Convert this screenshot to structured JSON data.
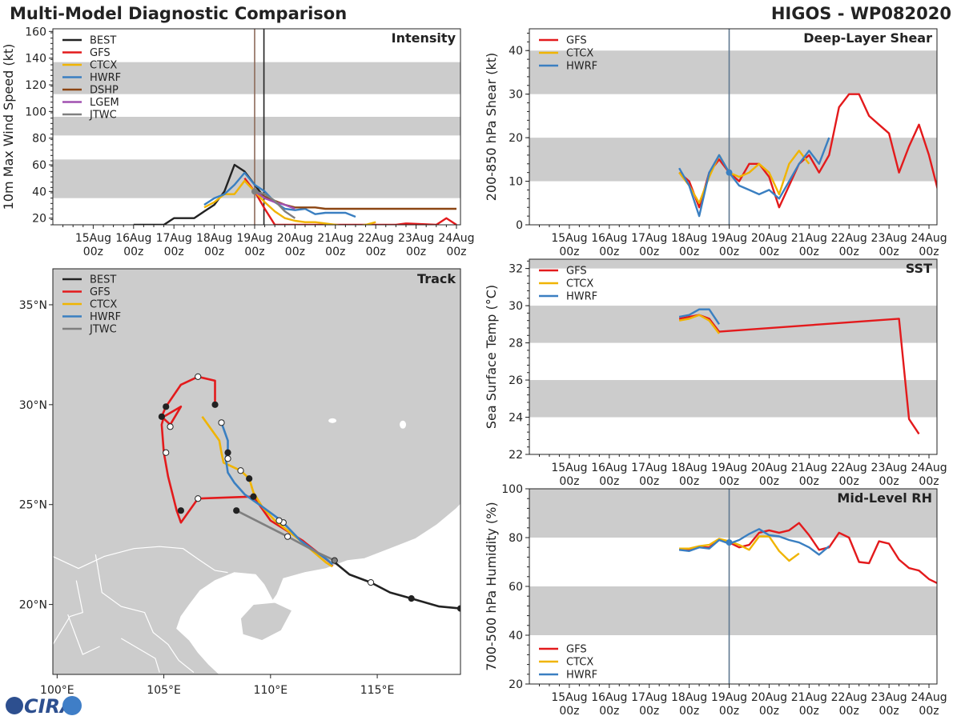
{
  "header": {
    "title": "Multi-Model Diagnostic Comparison",
    "storm": "HIGOS - WP082020"
  },
  "logo": {
    "text": "CIRA"
  },
  "time_ticks": [
    "15Aug\n00z",
    "16Aug\n00z",
    "17Aug\n00z",
    "18Aug\n00z",
    "19Aug\n00z",
    "20Aug\n00z",
    "21Aug\n00z",
    "22Aug\n00z",
    "23Aug\n00z",
    "24Aug\n00z"
  ],
  "colors": {
    "BEST": "#222222",
    "GFS": "#e31a1c",
    "CTCX": "#f0b400",
    "HWRF": "#3a7fc1",
    "DSHP": "#8c4512",
    "LGEM": "#a050b0",
    "JTWC": "#7f7f7f",
    "band": "#cccccc",
    "land": "#cccccc"
  },
  "chart_data": [
    {
      "id": "intensity",
      "type": "line",
      "title": "Intensity",
      "ylabel": "10m Max Wind Speed (kt)",
      "xlim": [
        -1,
        9.1
      ],
      "ylim": [
        15,
        162
      ],
      "yticks": [
        20,
        40,
        60,
        80,
        100,
        120,
        140,
        160
      ],
      "bands": [
        [
          35,
          64
        ],
        [
          82,
          96
        ],
        [
          113,
          137
        ]
      ],
      "vlines": [
        {
          "x": 4.0,
          "color": "#8c6a5a"
        },
        {
          "x": 4.23,
          "color": "#222222"
        }
      ],
      "legend_loc": "top-left",
      "series": [
        {
          "name": "BEST",
          "x": [
            1,
            1.25,
            1.5,
            1.75,
            2,
            2.25,
            2.5,
            2.75,
            3,
            3.25,
            3.5,
            3.75,
            4,
            4.25
          ],
          "y": [
            15,
            15,
            15,
            15,
            20,
            20,
            20,
            25,
            30,
            40,
            60,
            55,
            45,
            35
          ]
        },
        {
          "name": "GFS",
          "x": [
            3.75,
            4,
            4.25,
            4.5,
            7.5,
            7.75,
            8.5,
            8.75,
            9
          ],
          "y": [
            50,
            40,
            27,
            15,
            15,
            16,
            15,
            20,
            15
          ]
        },
        {
          "name": "CTCX",
          "x": [
            2.75,
            3,
            3.25,
            3.5,
            3.75,
            4,
            4.25,
            4.5,
            4.75,
            5,
            5.25,
            5.5,
            5.75,
            6.0,
            6.25,
            6.5,
            6.75,
            7.0
          ],
          "y": [
            28,
            32,
            38,
            38,
            48,
            40,
            32,
            25,
            20,
            18,
            17,
            17,
            16,
            15,
            14,
            14,
            15,
            17
          ]
        },
        {
          "name": "HWRF",
          "x": [
            2.75,
            3,
            3.25,
            3.5,
            3.75,
            4,
            4.25,
            4.5,
            4.75,
            5,
            5.25,
            5.5,
            5.75,
            6.0,
            6.25,
            6.5
          ],
          "y": [
            30,
            35,
            38,
            45,
            54,
            45,
            40,
            32,
            27,
            26,
            27,
            23,
            24,
            24,
            24,
            21
          ]
        },
        {
          "name": "DSHP",
          "x": [
            4,
            4.25,
            4.5,
            4.75,
            5,
            5.25,
            5.5,
            5.75,
            6,
            6.5,
            7,
            7.5,
            8,
            8.5,
            9
          ],
          "y": [
            40,
            36,
            33,
            30,
            28,
            28,
            28,
            27,
            27,
            27,
            27,
            27,
            27,
            27,
            27
          ]
        },
        {
          "name": "LGEM",
          "x": [
            4,
            4.25,
            4.5,
            4.75,
            5
          ],
          "y": [
            40,
            35,
            32,
            30,
            27
          ]
        },
        {
          "name": "JTWC",
          "x": [
            4,
            4.25,
            4.5,
            4.75,
            5
          ],
          "y": [
            40,
            38,
            33,
            25,
            20
          ]
        }
      ]
    },
    {
      "id": "shear",
      "type": "line",
      "title": "Deep-Layer Shear",
      "ylabel": "200-850 hPa Shear (kt)",
      "xlim": [
        -1,
        9.2
      ],
      "ylim": [
        0,
        45
      ],
      "yticks": [
        0,
        10,
        20,
        30,
        40
      ],
      "bands": [
        [
          10,
          20
        ],
        [
          30,
          40
        ]
      ],
      "vlines": [
        {
          "x": 4.0,
          "color": "#607890"
        }
      ],
      "legend_loc": "top-left",
      "series": [
        {
          "name": "GFS",
          "x": [
            2.75,
            3,
            3.25,
            3.5,
            3.75,
            4,
            4.25,
            4.5,
            4.75,
            5,
            5.25,
            5.5,
            5.75,
            6,
            6.25,
            6.5,
            6.75,
            7,
            7.25,
            7.5,
            7.75,
            8,
            8.25,
            8.5,
            8.75,
            9,
            9.25
          ],
          "y": [
            12,
            10,
            4,
            12,
            15,
            12,
            10,
            14,
            14,
            11,
            4,
            9,
            14,
            16,
            12,
            16,
            27,
            30,
            30,
            25,
            23,
            21,
            12,
            18,
            23,
            16,
            7
          ]
        },
        {
          "name": "CTCX",
          "x": [
            2.75,
            3,
            3.25,
            3.5,
            3.75,
            4,
            4.25,
            4.5,
            4.75,
            5,
            5.25,
            5.5,
            5.75,
            6.0
          ],
          "y": [
            12,
            9,
            5,
            11,
            16,
            12,
            11,
            12,
            14,
            12,
            7,
            14,
            17,
            14
          ]
        },
        {
          "name": "HWRF",
          "x": [
            2.75,
            3,
            3.25,
            3.5,
            3.75,
            4,
            4.25,
            4.5,
            4.75,
            5,
            5.25,
            5.5,
            5.75,
            6,
            6.25,
            6.5
          ],
          "y": [
            13,
            9,
            2,
            12,
            16,
            12,
            9,
            8,
            7,
            8,
            6,
            10,
            14,
            17,
            14,
            20
          ]
        }
      ]
    },
    {
      "id": "sst",
      "type": "line",
      "title": "SST",
      "ylabel": "Sea Surface Temp (°C)",
      "xlim": [
        -1,
        9.2
      ],
      "ylim": [
        22,
        32.5
      ],
      "yticks": [
        22,
        24,
        26,
        28,
        30,
        32
      ],
      "bands": [
        [
          24,
          26
        ],
        [
          28,
          30
        ],
        [
          32,
          33
        ]
      ],
      "vlines": [],
      "legend_loc": "top-left",
      "series": [
        {
          "name": "GFS",
          "x": [
            2.75,
            3,
            3.25,
            3.5,
            3.75,
            8.25,
            8.5,
            8.75
          ],
          "y": [
            29.3,
            29.4,
            29.5,
            29.3,
            28.6,
            29.3,
            23.9,
            23.1
          ]
        },
        {
          "name": "CTCX",
          "x": [
            2.75,
            3,
            3.25,
            3.5,
            3.75
          ],
          "y": [
            29.2,
            29.3,
            29.5,
            29.2,
            28.5
          ]
        },
        {
          "name": "HWRF",
          "x": [
            2.75,
            3,
            3.25,
            3.5,
            3.75
          ],
          "y": [
            29.4,
            29.5,
            29.8,
            29.8,
            29.0
          ]
        }
      ]
    },
    {
      "id": "rh",
      "type": "line",
      "title": "Mid-Level RH",
      "ylabel": "700-500 hPa Humidity (%)",
      "xlim": [
        -1,
        9.2
      ],
      "ylim": [
        20,
        100
      ],
      "yticks": [
        20,
        40,
        60,
        80,
        100
      ],
      "bands": [
        [
          40,
          60
        ],
        [
          80,
          100
        ]
      ],
      "vlines": [
        {
          "x": 4.0,
          "color": "#607890"
        }
      ],
      "legend_loc": "bottom-left",
      "series": [
        {
          "name": "GFS",
          "x": [
            2.75,
            3,
            3.25,
            3.5,
            3.75,
            4,
            4.25,
            4.5,
            4.75,
            5,
            5.25,
            5.5,
            5.75,
            6,
            6.25,
            6.5,
            6.75,
            7,
            7.25,
            7.5,
            7.75,
            8,
            8.25,
            8.5,
            8.75,
            9,
            9.25
          ],
          "y": [
            75,
            75,
            76,
            76,
            79,
            78,
            76,
            77,
            82,
            83,
            82,
            83,
            86,
            81,
            75,
            76,
            82,
            80,
            70,
            69.5,
            78.5,
            77.5,
            71,
            67.5,
            66.5,
            63,
            61
          ]
        },
        {
          "name": "CTCX",
          "x": [
            2.75,
            3,
            3.25,
            3.5,
            3.75,
            4,
            4.25,
            4.5,
            4.75,
            5,
            5.25,
            5.5,
            5.75
          ],
          "y": [
            75.5,
            75.5,
            76.5,
            77,
            79.5,
            78.5,
            77,
            75,
            80.5,
            80.5,
            74.5,
            70.5,
            73.5
          ]
        },
        {
          "name": "HWRF",
          "x": [
            2.75,
            3,
            3.25,
            3.5,
            3.75,
            4,
            4.25,
            4.5,
            4.75,
            5,
            5.25,
            5.5,
            5.75,
            6,
            6.25,
            6.5
          ],
          "y": [
            75,
            74.5,
            76,
            75.5,
            79,
            77.5,
            79,
            81.5,
            83.5,
            81,
            80.5,
            79,
            78,
            76,
            73,
            76.5
          ]
        }
      ]
    },
    {
      "id": "track",
      "type": "line",
      "title": "Track",
      "xlim": [
        99.8,
        118.9
      ],
      "ylim": [
        16.5,
        36.8
      ],
      "xticks": [
        100,
        105,
        110,
        115
      ],
      "xtick_labels": [
        "100°E",
        "105°E",
        "110°E",
        "115°E"
      ],
      "yticks": [
        20,
        25,
        30,
        35
      ],
      "ytick_labels": [
        "20°N",
        "25°N",
        "30°N",
        "35°N"
      ],
      "legend_loc": "top-left",
      "series": [
        {
          "name": "BEST",
          "lon": [
            118.9,
            117.9,
            116.6,
            115.6,
            114.7,
            113.7,
            112.9
          ],
          "lat": [
            19.8,
            19.9,
            20.3,
            20.6,
            21.1,
            21.5,
            22.2
          ]
        },
        {
          "name": "GFS",
          "lon": [
            112.9,
            112.8,
            111.5,
            110.0,
            109.2,
            106.6,
            105.8,
            105.6,
            105.2,
            105.0,
            104.9,
            105.0,
            105.8,
            105.3,
            104.9,
            105.1,
            105.8,
            106.6,
            107.4,
            107.4,
            107.4
          ],
          "lat": [
            21.9,
            22.1,
            23.2,
            24.2,
            25.4,
            25.3,
            24.1,
            24.7,
            26.4,
            27.6,
            29.0,
            29.4,
            29.9,
            29.0,
            29.4,
            29.9,
            31.0,
            31.4,
            31.2,
            30.9,
            30.0
          ]
        },
        {
          "name": "CTCX",
          "lon": [
            112.9,
            112.6,
            111.4,
            110.2,
            109.6,
            109.2,
            109.0,
            108.6,
            107.8,
            107.7,
            107.6,
            106.8
          ],
          "lat": [
            21.9,
            22.1,
            23.2,
            24.2,
            24.9,
            25.6,
            26.3,
            26.7,
            27.1,
            27.6,
            28.2,
            29.4
          ]
        },
        {
          "name": "HWRF",
          "lon": [
            112.9,
            112.7,
            111.4,
            110.5,
            109.6,
            108.8,
            108.3,
            108.0,
            107.9,
            108.0,
            108.0,
            107.7
          ],
          "lat": [
            22.0,
            22.2,
            23.2,
            24.2,
            24.9,
            25.5,
            26.1,
            26.6,
            27.3,
            27.8,
            28.2,
            29.1
          ]
        },
        {
          "name": "JTWC",
          "lon": [
            113.0,
            112.2,
            110.8,
            108.4
          ],
          "lat": [
            22.2,
            22.6,
            23.4,
            24.7
          ]
        }
      ],
      "points": [
        {
          "lon": 118.9,
          "lat": 19.8,
          "fill": "#222222"
        },
        {
          "lon": 116.6,
          "lat": 20.3,
          "fill": "#222222"
        },
        {
          "lon": 114.7,
          "lat": 21.1,
          "fill": "#ffffff"
        },
        {
          "lon": 113.0,
          "lat": 22.2,
          "fill": "#7f7f7f"
        },
        {
          "lon": 110.8,
          "lat": 23.4,
          "fill": "#ffffff"
        },
        {
          "lon": 108.4,
          "lat": 24.7,
          "fill": "#222222"
        },
        {
          "lon": 110.6,
          "lat": 24.1,
          "fill": "#ffffff"
        },
        {
          "lon": 110.4,
          "lat": 24.2,
          "fill": "#ffffff"
        },
        {
          "lon": 109.2,
          "lat": 25.4,
          "fill": "#222222"
        },
        {
          "lon": 109.0,
          "lat": 26.3,
          "fill": "#222222"
        },
        {
          "lon": 108.6,
          "lat": 26.7,
          "fill": "#ffffff"
        },
        {
          "lon": 108.0,
          "lat": 27.3,
          "fill": "#ffffff"
        },
        {
          "lon": 108.0,
          "lat": 27.6,
          "fill": "#222222"
        },
        {
          "lon": 107.7,
          "lat": 29.1,
          "fill": "#ffffff"
        },
        {
          "lon": 106.6,
          "lat": 25.3,
          "fill": "#ffffff"
        },
        {
          "lon": 105.8,
          "lat": 24.7,
          "fill": "#222222"
        },
        {
          "lon": 105.1,
          "lat": 27.6,
          "fill": "#ffffff"
        },
        {
          "lon": 105.3,
          "lat": 28.9,
          "fill": "#ffffff"
        },
        {
          "lon": 104.9,
          "lat": 29.4,
          "fill": "#222222"
        },
        {
          "lon": 105.1,
          "lat": 29.9,
          "fill": "#222222"
        },
        {
          "lon": 106.6,
          "lat": 31.4,
          "fill": "#ffffff"
        },
        {
          "lon": 107.4,
          "lat": 30.0,
          "fill": "#222222"
        }
      ]
    }
  ]
}
